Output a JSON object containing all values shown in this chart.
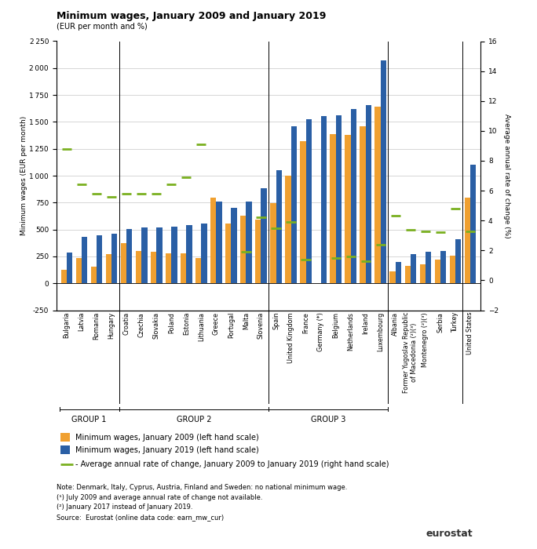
{
  "title": "Minimum wages, January 2009 and January 2019",
  "subtitle": "(EUR per month and %)",
  "ylabel_left": "Minimum wages (EUR per month)",
  "ylabel_right": "Average annual rate of change (%)",
  "ylim_left": [
    -250,
    2250
  ],
  "ylim_right": [
    -2,
    16
  ],
  "yticks_left": [
    -250,
    0,
    250,
    500,
    750,
    1000,
    1250,
    1500,
    1750,
    2000,
    2250
  ],
  "yticks_right": [
    -2,
    0,
    2,
    4,
    6,
    8,
    10,
    12,
    14,
    16
  ],
  "countries": [
    "Bulgaria",
    "Latvia",
    "Romania",
    "Hungary",
    "Croatia",
    "Czechia",
    "Slovakia",
    "Poland",
    "Estonia",
    "Lithuania",
    "Greece",
    "Portugal",
    "Malta",
    "Slovenia",
    "Spain",
    "United Kingdom",
    "France",
    "Germany (*)",
    "Belgium",
    "Netherlands",
    "Ireland",
    "Luxembourg",
    "Albania",
    "Former Yugoslav Republic\nof Macedonia (²)(³)",
    "Montenegro (²)(³)",
    "Serbia",
    "Turkey",
    "United States"
  ],
  "wages_2009": [
    122,
    232,
    153,
    270,
    374,
    297,
    295,
    281,
    278,
    232,
    794,
    554,
    631,
    589,
    748,
    999,
    1321,
    null,
    1387,
    1382,
    1462,
    1642,
    112,
    164,
    178,
    220,
    257,
    795
  ],
  "wages_2019": [
    286,
    430,
    446,
    464,
    506,
    519,
    520,
    523,
    540,
    555,
    758,
    700,
    761,
    887,
    1050,
    1461,
    1522,
    1557,
    1563,
    1616,
    1656,
    2071,
    200,
    270,
    290,
    301,
    413,
    1100
  ],
  "rate_of_change": [
    8.8,
    6.4,
    5.8,
    5.6,
    5.8,
    5.8,
    5.8,
    6.4,
    6.9,
    9.1,
    null,
    null,
    1.9,
    4.2,
    3.5,
    3.9,
    1.4,
    null,
    1.5,
    1.6,
    1.3,
    2.4,
    4.3,
    3.4,
    3.3,
    3.2,
    4.8,
    3.3
  ],
  "color_2009": "#f0a030",
  "color_2019": "#2a5fa5",
  "color_rate": "#7ab020",
  "bar_width": 0.38,
  "group_separators": [
    3.5,
    13.5,
    21.5,
    26.5
  ],
  "group_labels": [
    {
      "name": "GROUP 1",
      "start": 0,
      "end": 3
    },
    {
      "name": "GROUP 2",
      "start": 4,
      "end": 13
    },
    {
      "name": "GROUP 3",
      "start": 14,
      "end": 21
    }
  ],
  "legend_items": [
    "Minimum wages, January 2009 (left hand scale)",
    "Minimum wages, January 2019 (left hand scale)",
    "- Average annual rate of change, January 2009 to January 2019 (right hand scale)"
  ],
  "note_text": "Note: Denmark, Italy, Cyprus, Austria, Finland and Sweden: no national minimum wage.\n(¹) July 2009 and average annual rate of change not available.\n(²) January 2017 instead of January 2019.\nSource:  Eurostat (online data code: earn_mw_cur)"
}
